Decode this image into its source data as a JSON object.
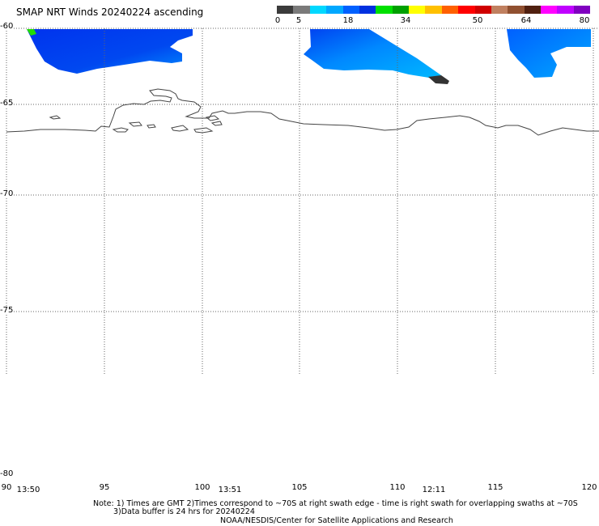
{
  "title": "SMAP NRT Winds 20240224 ascending",
  "colorbar": {
    "labels": [
      "0",
      "5",
      "18",
      "34",
      "50",
      "64",
      "80"
    ],
    "segments": [
      "#3b3b3b",
      "#7a7a7a",
      "#00d8ff",
      "#00a8ff",
      "#0060ff",
      "#0030e0",
      "#00e000",
      "#00a000",
      "#ffff00",
      "#ffc000",
      "#ff6000",
      "#ff0000",
      "#d00000",
      "#c08060",
      "#905030",
      "#502010",
      "#ff00ff",
      "#c000ff",
      "#8000c0"
    ]
  },
  "lat_labels": [
    "-60",
    "-65",
    "-70",
    "-75",
    "-80"
  ],
  "lon_labels": [
    "90",
    "95",
    "100",
    "105",
    "110",
    "115",
    "120"
  ],
  "time_labels": [
    "13:50",
    "13:51",
    "12:11"
  ],
  "notes": {
    "line1": "Note: 1) Times are GMT 2)Times correspond to ~70S at right swath edge - time is right swath for overlapping swaths at ~70S",
    "line2": "3)Data buffer is 24 hrs for 20240224",
    "line3": "NOAA/NESDIS/Center for Satellite Applications and Research"
  }
}
